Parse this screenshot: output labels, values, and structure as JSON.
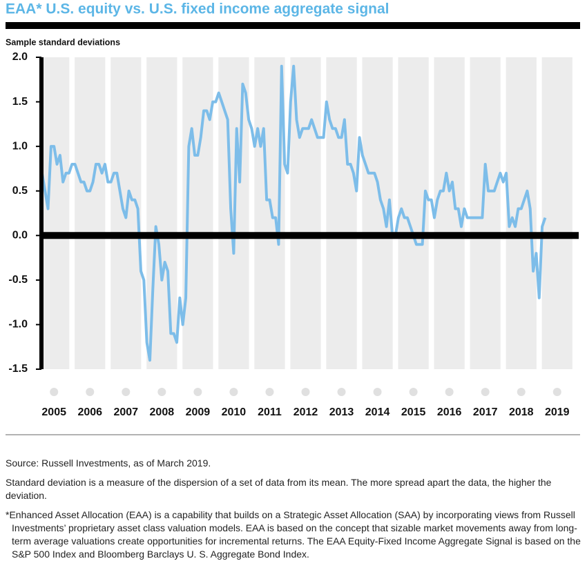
{
  "chart_data": {
    "type": "line",
    "title": "EAA* U.S. equity vs. U.S. fixed income aggregate signal",
    "y_label": "Sample standard deviations",
    "color": "#7dbde9",
    "x": [
      2004.667,
      2004.75,
      2004.833,
      2004.917,
      2005,
      2005.083,
      2005.167,
      2005.25,
      2005.333,
      2005.417,
      2005.5,
      2005.583,
      2005.667,
      2005.75,
      2005.833,
      2005.917,
      2006,
      2006.083,
      2006.167,
      2006.25,
      2006.333,
      2006.417,
      2006.5,
      2006.583,
      2006.667,
      2006.75,
      2006.833,
      2006.917,
      2007,
      2007.083,
      2007.167,
      2007.25,
      2007.333,
      2007.417,
      2007.5,
      2007.583,
      2007.667,
      2007.75,
      2007.833,
      2007.917,
      2008,
      2008.083,
      2008.167,
      2008.25,
      2008.333,
      2008.417,
      2008.5,
      2008.583,
      2008.667,
      2008.75,
      2008.833,
      2008.917,
      2009,
      2009.083,
      2009.167,
      2009.25,
      2009.333,
      2009.417,
      2009.5,
      2009.583,
      2009.667,
      2009.75,
      2009.833,
      2009.917,
      2010,
      2010.083,
      2010.167,
      2010.25,
      2010.333,
      2010.417,
      2010.5,
      2010.583,
      2010.667,
      2010.75,
      2010.833,
      2010.917,
      2011,
      2011.083,
      2011.167,
      2011.25,
      2011.333,
      2011.417,
      2011.5,
      2011.583,
      2011.667,
      2011.75,
      2011.833,
      2011.917,
      2012,
      2012.083,
      2012.167,
      2012.25,
      2012.333,
      2012.417,
      2012.5,
      2012.583,
      2012.667,
      2012.75,
      2012.833,
      2012.917,
      2013,
      2013.083,
      2013.167,
      2013.25,
      2013.333,
      2013.417,
      2013.5,
      2013.583,
      2013.667,
      2013.75,
      2013.833,
      2013.917,
      2014,
      2014.083,
      2014.167,
      2014.25,
      2014.333,
      2014.417,
      2014.5,
      2014.583,
      2014.667,
      2014.75,
      2014.833,
      2014.917,
      2015,
      2015.083,
      2015.167,
      2015.25,
      2015.333,
      2015.417,
      2015.5,
      2015.583,
      2015.667,
      2015.75,
      2015.833,
      2015.917,
      2016,
      2016.083,
      2016.167,
      2016.25,
      2016.333,
      2016.417,
      2016.5,
      2016.583,
      2016.667,
      2016.75,
      2016.833,
      2016.917,
      2017,
      2017.083,
      2017.167,
      2017.25,
      2017.333,
      2017.417,
      2017.5,
      2017.583,
      2017.667,
      2017.75,
      2017.833,
      2017.917,
      2018,
      2018.083,
      2018.167,
      2018.25,
      2018.333,
      2018.417,
      2018.5,
      2018.583,
      2018.667
    ],
    "values": [
      0.7,
      0.5,
      0.3,
      1.0,
      1.0,
      0.8,
      0.9,
      0.6,
      0.7,
      0.7,
      0.8,
      0.8,
      0.7,
      0.6,
      0.6,
      0.5,
      0.5,
      0.6,
      0.8,
      0.8,
      0.7,
      0.8,
      0.6,
      0.6,
      0.7,
      0.7,
      0.5,
      0.3,
      0.2,
      0.5,
      0.4,
      0.4,
      0.3,
      -0.4,
      -0.5,
      -1.2,
      -1.4,
      -0.6,
      0.1,
      -0.1,
      -0.5,
      -0.3,
      -0.4,
      -1.1,
      -1.1,
      -1.2,
      -0.7,
      -1.0,
      -0.7,
      1.0,
      1.2,
      0.9,
      0.9,
      1.1,
      1.4,
      1.4,
      1.3,
      1.5,
      1.5,
      1.6,
      1.5,
      1.4,
      1.3,
      0.3,
      -0.2,
      1.2,
      0.6,
      1.7,
      1.6,
      1.3,
      1.2,
      1.0,
      1.2,
      1.0,
      1.2,
      0.4,
      0.4,
      0.2,
      0.2,
      -0.1,
      1.9,
      0.8,
      0.7,
      1.5,
      1.9,
      1.3,
      1.1,
      1.2,
      1.2,
      1.2,
      1.3,
      1.2,
      1.1,
      1.1,
      1.1,
      1.5,
      1.3,
      1.2,
      1.2,
      1.1,
      1.1,
      1.3,
      0.8,
      0.8,
      0.7,
      0.5,
      1.1,
      0.9,
      0.8,
      0.7,
      0.7,
      0.7,
      0.6,
      0.4,
      0.3,
      0.1,
      0.4,
      0.0,
      0.0,
      0.2,
      0.3,
      0.2,
      0.2,
      0.1,
      0.0,
      -0.1,
      -0.1,
      -0.1,
      0.5,
      0.4,
      0.4,
      0.2,
      0.4,
      0.5,
      0.5,
      0.7,
      0.5,
      0.6,
      0.3,
      0.3,
      0.1,
      0.3,
      0.2,
      0.2,
      0.2,
      0.2,
      0.2,
      0.2,
      0.8,
      0.5,
      0.5,
      0.5,
      0.6,
      0.7,
      0.6,
      0.7,
      0.1,
      0.2,
      0.1,
      0.3,
      0.3,
      0.4,
      0.5,
      0.3,
      -0.4,
      -0.2,
      -0.7,
      0.1,
      0.2
    ],
    "xlim": [
      2004.65,
      2019.6
    ],
    "xticks": [
      2005,
      2006,
      2007,
      2008,
      2009,
      2010,
      2011,
      2012,
      2013,
      2014,
      2015,
      2016,
      2017,
      2018,
      2019
    ],
    "ylim": [
      -1.5,
      2
    ],
    "yticks": [
      {
        "value": 2,
        "label": "2.0"
      },
      1.5,
      {
        "value": 1,
        "label": "1.0"
      },
      0.5,
      {
        "value": 0,
        "label": "0.0"
      },
      -0.5,
      {
        "value": -1,
        "label": "-1.0"
      },
      -1.5
    ]
  },
  "source": "Source: Russell Investments, as of March 2019.",
  "notes": [
    "Standard deviation is a measure of the dispersion of a set of data from its mean. The more spread apart the data, the higher the deviation.",
    "*Enhanced Asset Allocation (EAA) is a capability that builds on a Strategic Asset Allocation (SAA) by incorporating views from Russell Investments’ proprietary asset class valuation models. EAA is based on the concept that sizable market movements away from long-term average valuations create opportunities for incremental returns. The EAA Equity-Fixed Income Aggregate Signal is based on the S&P 500 Index and Bloomberg Barclays U. S. Aggregate Bond Index."
  ]
}
